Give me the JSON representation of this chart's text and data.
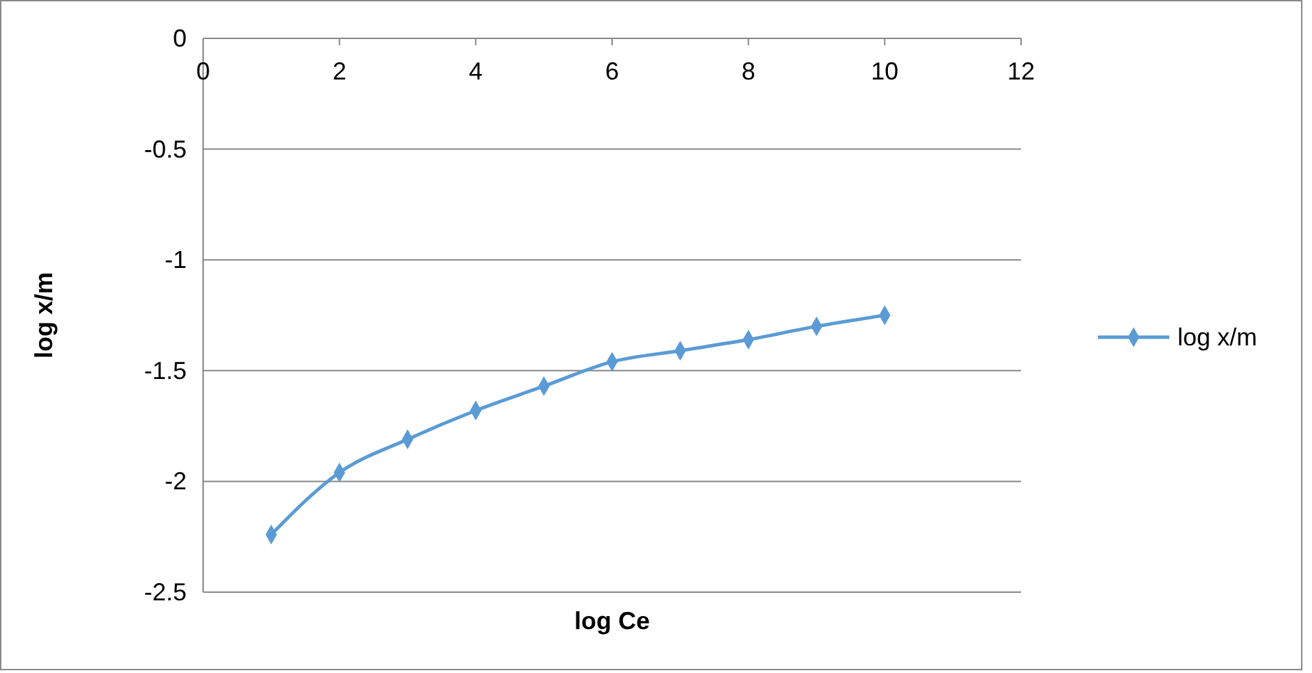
{
  "chart_data": {
    "type": "line",
    "xlabel": "log Ce",
    "ylabel": "log x/m",
    "x": [
      1,
      2,
      3,
      4,
      5,
      6,
      7,
      8,
      9,
      10
    ],
    "series": [
      {
        "name": "log x/m",
        "color": "#5b9bd5",
        "values": [
          -2.24,
          -1.96,
          -1.81,
          -1.68,
          -1.57,
          -1.46,
          -1.41,
          -1.36,
          -1.3,
          -1.25
        ]
      }
    ],
    "xlim": [
      0,
      12
    ],
    "xticks": [
      0,
      2,
      4,
      6,
      8,
      10,
      12
    ],
    "ylim": [
      -2.5,
      0
    ],
    "yticks": [
      -2.5,
      -2,
      -1.5,
      -1,
      -0.5,
      0
    ],
    "grid": "y",
    "legend": "right",
    "marker": "diamond",
    "line_style": "solid"
  }
}
